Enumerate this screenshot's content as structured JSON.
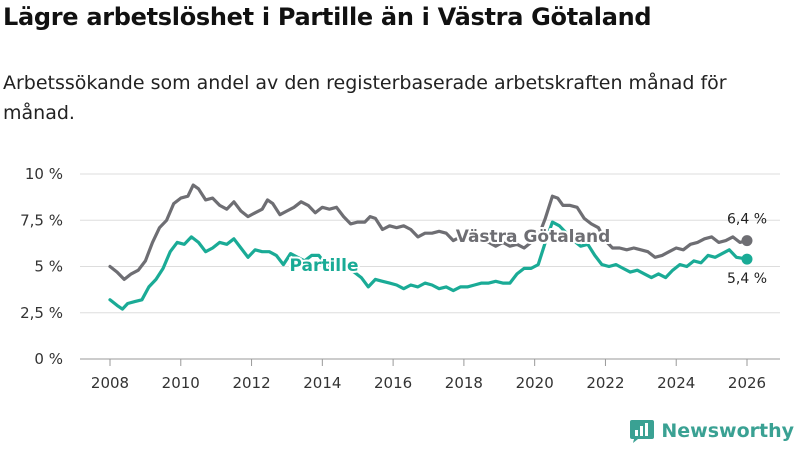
{
  "title": "Lägre arbetslöshet i Partille än i Västra Götaland",
  "subtitle": "Arbetssökande som andel av den registerbaserade arbetskraften månad för månad.",
  "brand": {
    "name": "Newsworthy",
    "color": "#3aa193"
  },
  "chart_data": {
    "type": "line",
    "title": "Lägre arbetslöshet i Partille än i Västra Götaland",
    "xlabel": "",
    "ylabel": "",
    "xlim": [
      2007.5,
      2026.8
    ],
    "ylim": [
      0,
      10
    ],
    "grid": true,
    "y_ticks": [
      {
        "value": 0,
        "label": "0 %"
      },
      {
        "value": 2.5,
        "label": "2,5 %"
      },
      {
        "value": 5,
        "label": "5 %"
      },
      {
        "value": 7.5,
        "label": "7,5 %"
      },
      {
        "value": 10,
        "label": "10 %"
      }
    ],
    "x_ticks": [
      {
        "value": 2008,
        "label": "2008"
      },
      {
        "value": 2010,
        "label": "2010"
      },
      {
        "value": 2012,
        "label": "2012"
      },
      {
        "value": 2014,
        "label": "2014"
      },
      {
        "value": 2016,
        "label": "2016"
      },
      {
        "value": 2018,
        "label": "2018"
      },
      {
        "value": 2020,
        "label": "2020"
      },
      {
        "value": 2022,
        "label": "2022"
      },
      {
        "value": 2024,
        "label": "2024"
      },
      {
        "value": 2026,
        "label": "2026"
      }
    ],
    "series": [
      {
        "name": "Västra Götaland",
        "color": "#6e6e73",
        "end_label": "6,4 %",
        "points": [
          [
            2008.0,
            5.0
          ],
          [
            2008.2,
            4.7
          ],
          [
            2008.4,
            4.3
          ],
          [
            2008.6,
            4.6
          ],
          [
            2008.8,
            4.8
          ],
          [
            2009.0,
            5.3
          ],
          [
            2009.2,
            6.3
          ],
          [
            2009.4,
            7.1
          ],
          [
            2009.6,
            7.5
          ],
          [
            2009.8,
            8.4
          ],
          [
            2010.0,
            8.7
          ],
          [
            2010.2,
            8.8
          ],
          [
            2010.35,
            9.4
          ],
          [
            2010.5,
            9.2
          ],
          [
            2010.7,
            8.6
          ],
          [
            2010.9,
            8.7
          ],
          [
            2011.1,
            8.3
          ],
          [
            2011.3,
            8.1
          ],
          [
            2011.5,
            8.5
          ],
          [
            2011.7,
            8.0
          ],
          [
            2011.9,
            7.7
          ],
          [
            2012.1,
            7.9
          ],
          [
            2012.3,
            8.1
          ],
          [
            2012.45,
            8.6
          ],
          [
            2012.6,
            8.4
          ],
          [
            2012.8,
            7.8
          ],
          [
            2013.0,
            8.0
          ],
          [
            2013.2,
            8.2
          ],
          [
            2013.4,
            8.5
          ],
          [
            2013.6,
            8.3
          ],
          [
            2013.8,
            7.9
          ],
          [
            2014.0,
            8.2
          ],
          [
            2014.2,
            8.1
          ],
          [
            2014.4,
            8.2
          ],
          [
            2014.6,
            7.7
          ],
          [
            2014.8,
            7.3
          ],
          [
            2015.0,
            7.4
          ],
          [
            2015.2,
            7.4
          ],
          [
            2015.35,
            7.7
          ],
          [
            2015.5,
            7.6
          ],
          [
            2015.7,
            7.0
          ],
          [
            2015.9,
            7.2
          ],
          [
            2016.1,
            7.1
          ],
          [
            2016.3,
            7.2
          ],
          [
            2016.5,
            7.0
          ],
          [
            2016.7,
            6.6
          ],
          [
            2016.9,
            6.8
          ],
          [
            2017.1,
            6.8
          ],
          [
            2017.3,
            6.9
          ],
          [
            2017.5,
            6.8
          ],
          [
            2017.7,
            6.4
          ],
          [
            2017.9,
            6.6
          ],
          [
            2018.1,
            6.5
          ],
          [
            2018.3,
            6.6
          ],
          [
            2018.5,
            6.4
          ],
          [
            2018.7,
            6.3
          ],
          [
            2018.9,
            6.1
          ],
          [
            2019.1,
            6.3
          ],
          [
            2019.3,
            6.1
          ],
          [
            2019.5,
            6.2
          ],
          [
            2019.7,
            6.0
          ],
          [
            2019.9,
            6.3
          ],
          [
            2020.1,
            6.6
          ],
          [
            2020.3,
            7.6
          ],
          [
            2020.5,
            8.8
          ],
          [
            2020.65,
            8.7
          ],
          [
            2020.8,
            8.3
          ],
          [
            2021.0,
            8.3
          ],
          [
            2021.2,
            8.2
          ],
          [
            2021.4,
            7.6
          ],
          [
            2021.6,
            7.3
          ],
          [
            2021.8,
            7.1
          ],
          [
            2022.0,
            6.4
          ],
          [
            2022.2,
            6.0
          ],
          [
            2022.4,
            6.0
          ],
          [
            2022.6,
            5.9
          ],
          [
            2022.8,
            6.0
          ],
          [
            2023.0,
            5.9
          ],
          [
            2023.2,
            5.8
          ],
          [
            2023.4,
            5.5
          ],
          [
            2023.6,
            5.6
          ],
          [
            2023.8,
            5.8
          ],
          [
            2024.0,
            6.0
          ],
          [
            2024.2,
            5.9
          ],
          [
            2024.4,
            6.2
          ],
          [
            2024.6,
            6.3
          ],
          [
            2024.8,
            6.5
          ],
          [
            2025.0,
            6.6
          ],
          [
            2025.2,
            6.3
          ],
          [
            2025.4,
            6.4
          ],
          [
            2025.6,
            6.6
          ],
          [
            2025.8,
            6.3
          ],
          [
            2026.0,
            6.4
          ]
        ]
      },
      {
        "name": "Partille",
        "color": "#1aab96",
        "end_label": "5,4 %",
        "points": [
          [
            2008.0,
            3.2
          ],
          [
            2008.2,
            2.9
          ],
          [
            2008.35,
            2.7
          ],
          [
            2008.5,
            3.0
          ],
          [
            2008.7,
            3.1
          ],
          [
            2008.9,
            3.2
          ],
          [
            2009.1,
            3.9
          ],
          [
            2009.3,
            4.3
          ],
          [
            2009.5,
            4.9
          ],
          [
            2009.7,
            5.8
          ],
          [
            2009.9,
            6.3
          ],
          [
            2010.1,
            6.2
          ],
          [
            2010.3,
            6.6
          ],
          [
            2010.5,
            6.3
          ],
          [
            2010.7,
            5.8
          ],
          [
            2010.9,
            6.0
          ],
          [
            2011.1,
            6.3
          ],
          [
            2011.3,
            6.2
          ],
          [
            2011.5,
            6.5
          ],
          [
            2011.7,
            6.0
          ],
          [
            2011.9,
            5.5
          ],
          [
            2012.1,
            5.9
          ],
          [
            2012.3,
            5.8
          ],
          [
            2012.5,
            5.8
          ],
          [
            2012.7,
            5.6
          ],
          [
            2012.9,
            5.1
          ],
          [
            2013.1,
            5.7
          ],
          [
            2013.3,
            5.5
          ],
          [
            2013.5,
            5.3
          ],
          [
            2013.7,
            5.6
          ],
          [
            2013.9,
            5.6
          ],
          [
            2014.1,
            5.1
          ],
          [
            2014.3,
            4.9
          ],
          [
            2014.5,
            4.8
          ],
          [
            2014.7,
            4.9
          ],
          [
            2014.9,
            4.7
          ],
          [
            2015.1,
            4.4
          ],
          [
            2015.3,
            3.9
          ],
          [
            2015.5,
            4.3
          ],
          [
            2015.7,
            4.2
          ],
          [
            2015.9,
            4.1
          ],
          [
            2016.1,
            4.0
          ],
          [
            2016.3,
            3.8
          ],
          [
            2016.5,
            4.0
          ],
          [
            2016.7,
            3.9
          ],
          [
            2016.9,
            4.1
          ],
          [
            2017.1,
            4.0
          ],
          [
            2017.3,
            3.8
          ],
          [
            2017.5,
            3.9
          ],
          [
            2017.7,
            3.7
          ],
          [
            2017.9,
            3.9
          ],
          [
            2018.1,
            3.9
          ],
          [
            2018.3,
            4.0
          ],
          [
            2018.5,
            4.1
          ],
          [
            2018.7,
            4.1
          ],
          [
            2018.9,
            4.2
          ],
          [
            2019.1,
            4.1
          ],
          [
            2019.3,
            4.1
          ],
          [
            2019.5,
            4.6
          ],
          [
            2019.7,
            4.9
          ],
          [
            2019.9,
            4.9
          ],
          [
            2020.1,
            5.1
          ],
          [
            2020.3,
            6.3
          ],
          [
            2020.5,
            7.4
          ],
          [
            2020.7,
            7.2
          ],
          [
            2020.9,
            6.8
          ],
          [
            2021.1,
            6.4
          ],
          [
            2021.3,
            6.1
          ],
          [
            2021.5,
            6.2
          ],
          [
            2021.7,
            5.6
          ],
          [
            2021.9,
            5.1
          ],
          [
            2022.1,
            5.0
          ],
          [
            2022.3,
            5.1
          ],
          [
            2022.5,
            4.9
          ],
          [
            2022.7,
            4.7
          ],
          [
            2022.9,
            4.8
          ],
          [
            2023.1,
            4.6
          ],
          [
            2023.3,
            4.4
          ],
          [
            2023.5,
            4.6
          ],
          [
            2023.7,
            4.4
          ],
          [
            2023.9,
            4.8
          ],
          [
            2024.1,
            5.1
          ],
          [
            2024.3,
            5.0
          ],
          [
            2024.5,
            5.3
          ],
          [
            2024.7,
            5.2
          ],
          [
            2024.9,
            5.6
          ],
          [
            2025.1,
            5.5
          ],
          [
            2025.3,
            5.7
          ],
          [
            2025.5,
            5.9
          ],
          [
            2025.7,
            5.5
          ],
          [
            2026.0,
            5.4
          ]
        ]
      }
    ]
  }
}
